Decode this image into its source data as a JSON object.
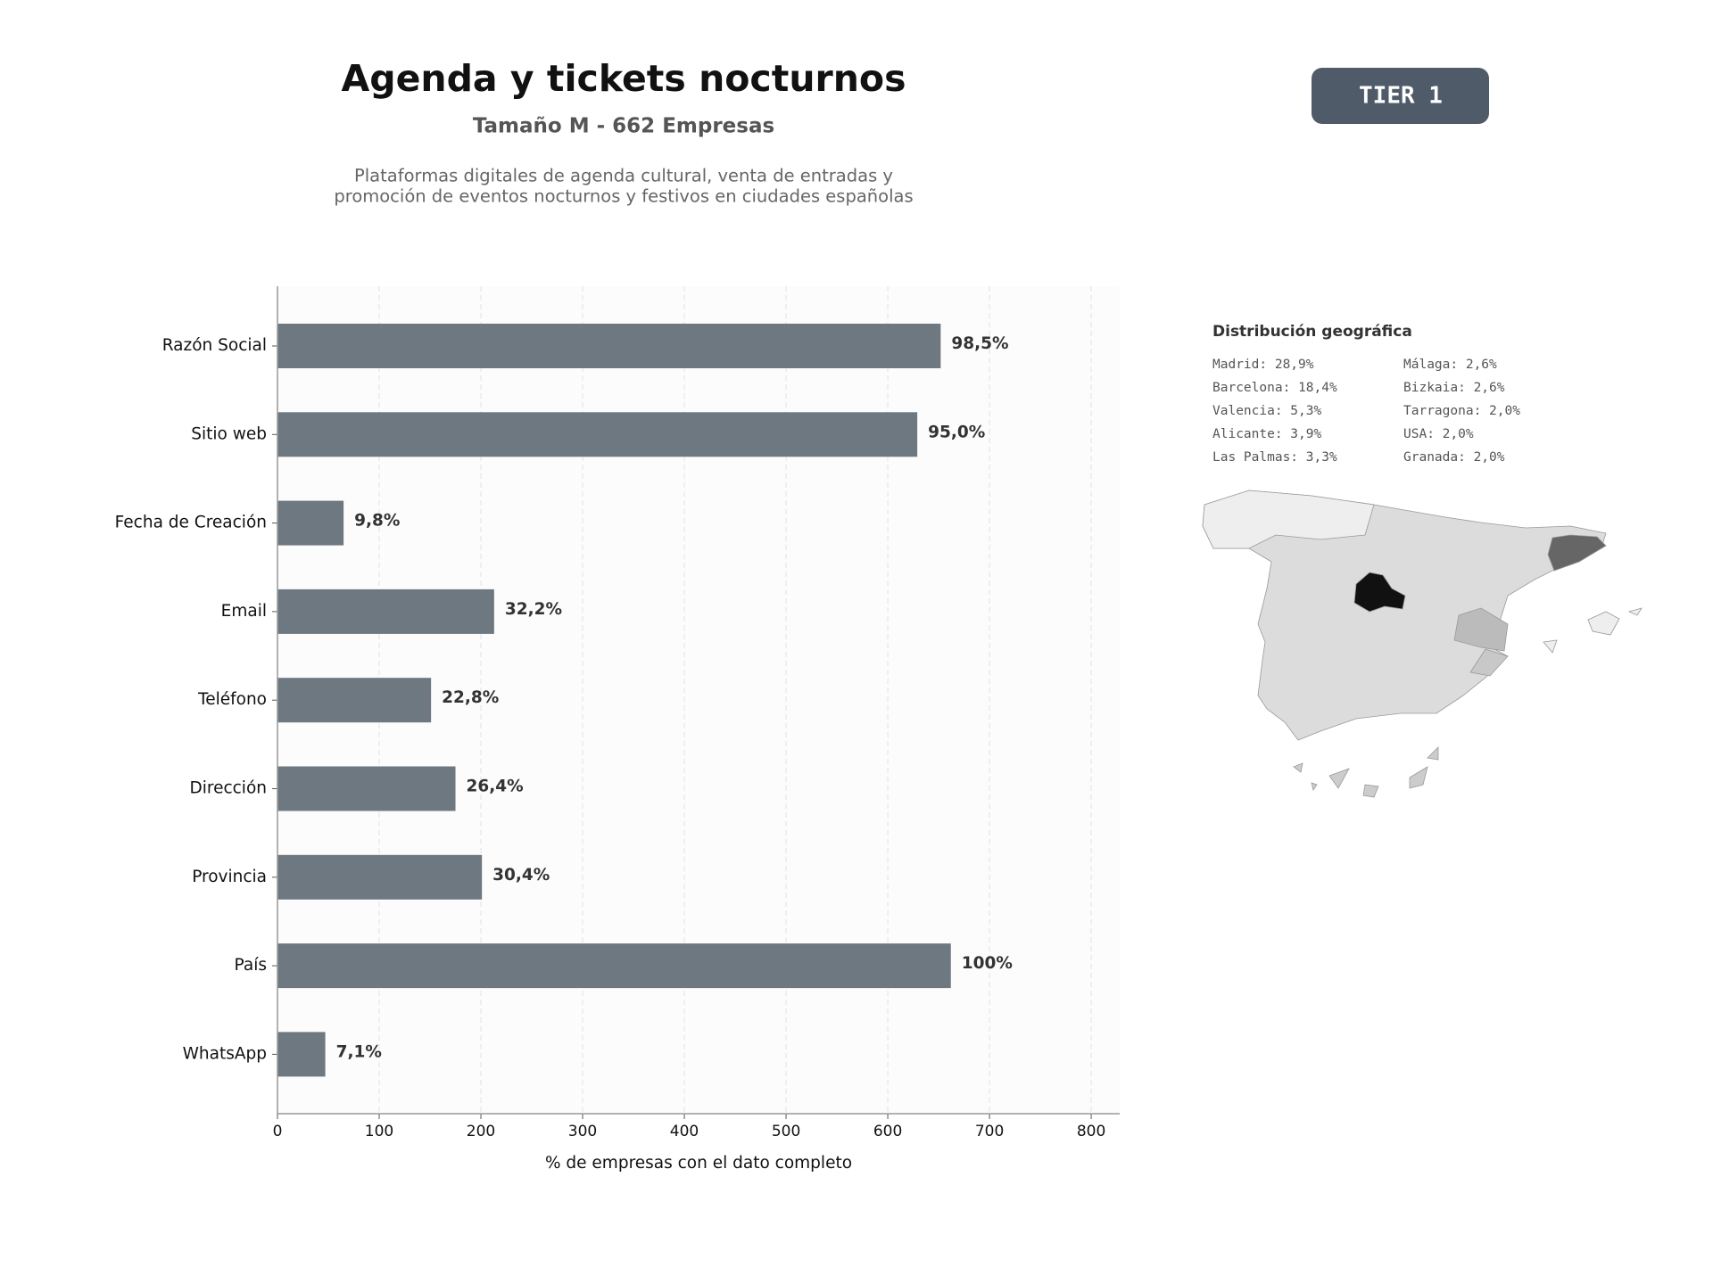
{
  "header": {
    "title": "Agenda y tickets nocturnos",
    "subtitle": "Tamaño M - 662 Empresas",
    "description": [
      "Plataformas digitales de agenda cultural, venta de entradas y",
      "promoción de eventos nocturnos y festivos en ciudades españolas"
    ]
  },
  "badge": "TIER 1",
  "geo": {
    "title": "Distribución geográfica",
    "columns": [
      [
        "Madrid: 28,9%",
        "Barcelona: 18,4%",
        "Valencia: 5,3%",
        "Alicante: 3,9%",
        "Las Palmas: 3,3%"
      ],
      [
        "Málaga: 2,6%",
        "Bizkaia: 2,6%",
        "Tarragona: 2,0%",
        "USA: 2,0%",
        "Granada: 2,0%"
      ]
    ]
  },
  "chart_data": {
    "type": "barh",
    "categories": [
      "Razón Social",
      "Sitio web",
      "Fecha de Creación",
      "Email",
      "Teléfono",
      "Dirección",
      "Provincia",
      "País",
      "WhatsApp"
    ],
    "values": [
      652,
      629,
      65,
      213,
      151,
      175,
      201,
      662,
      47
    ],
    "value_labels": [
      "98,5%",
      "95,0%",
      "9,8%",
      "32,2%",
      "22,8%",
      "26,4%",
      "30,4%",
      "100%",
      "7,1%"
    ],
    "color": "#6e7881",
    "xlabel": "% de empresas con el dato completo",
    "xlim": [
      0,
      828
    ],
    "xticks": [
      0,
      100,
      200,
      300,
      400,
      500,
      600,
      700,
      800
    ],
    "grid": true
  }
}
